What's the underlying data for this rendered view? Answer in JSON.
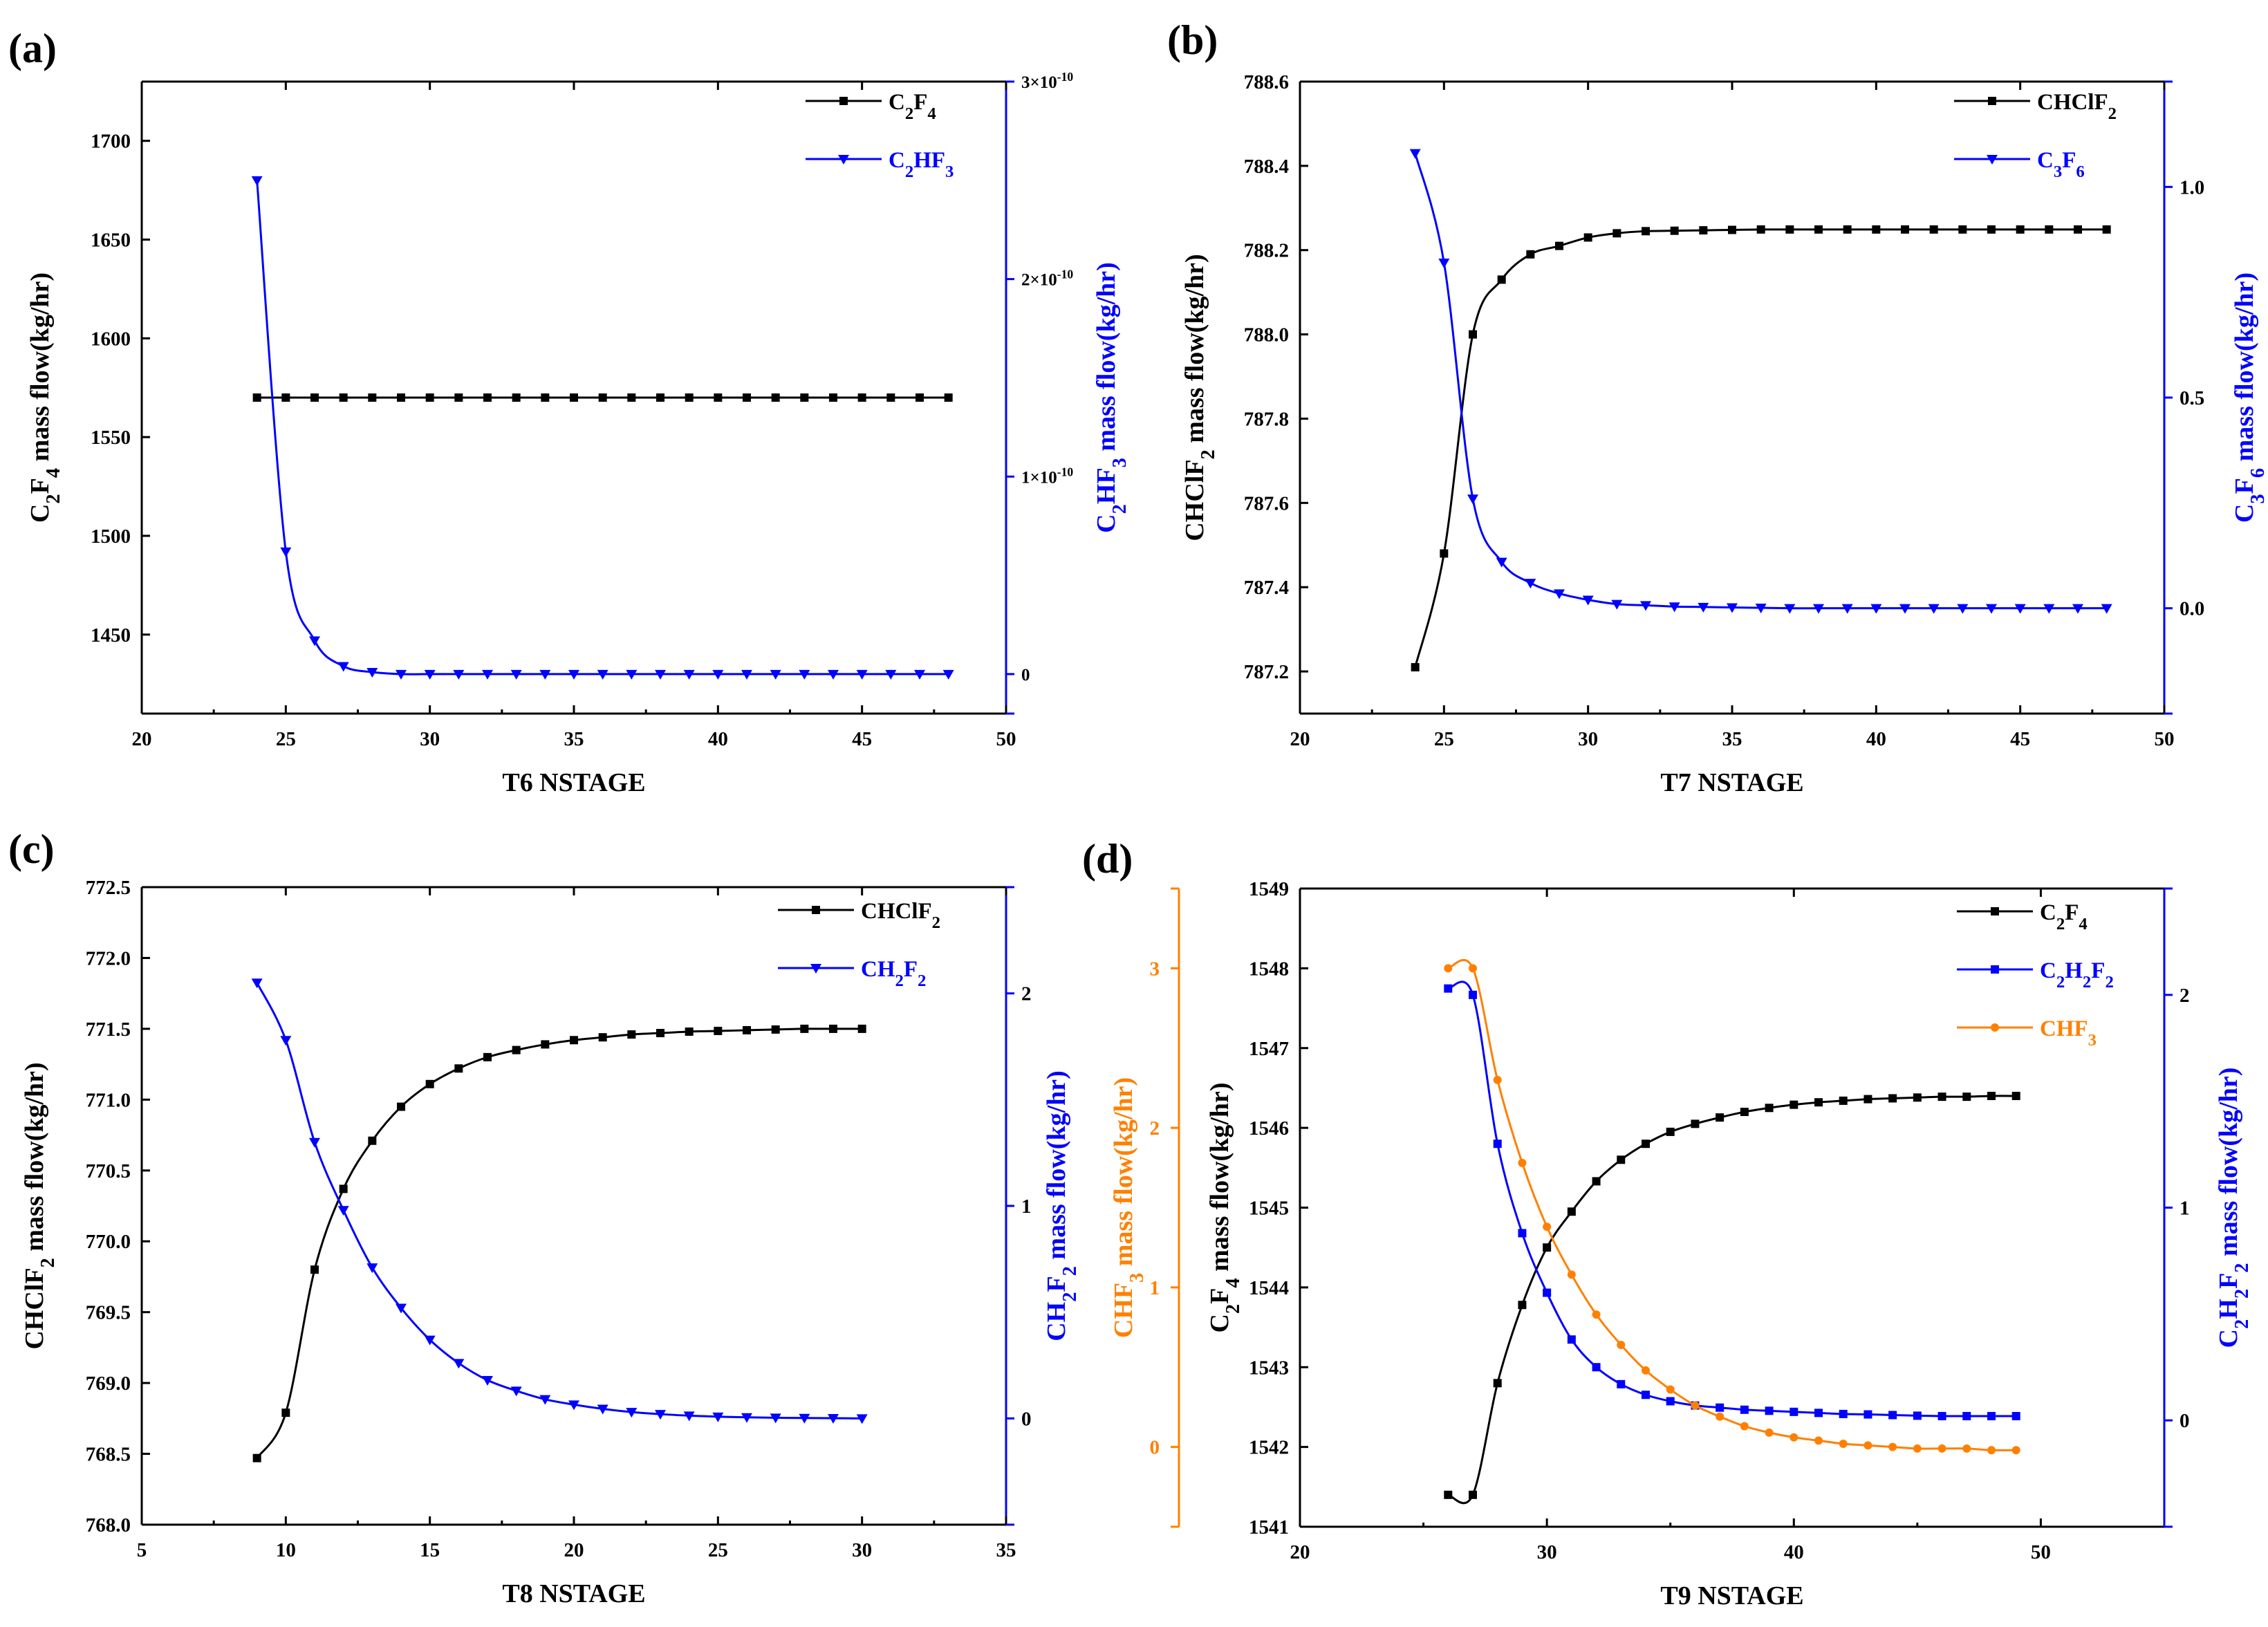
{
  "colors": {
    "black": "#000000",
    "blue": "#0000FF",
    "orange": "#FF8000"
  },
  "chart_data": [
    {
      "panel": "(a)",
      "type": "line",
      "xlabel": "T6 NSTAGE",
      "xlim": [
        20,
        50
      ],
      "xticks": [
        20,
        25,
        30,
        35,
        40,
        45,
        50
      ],
      "ylim_left": [
        1410,
        1730
      ],
      "yticks_left": [
        1450,
        1500,
        1550,
        1600,
        1650,
        1700
      ],
      "ylabel_left": "C2F4 mass flow(kg/hr)",
      "ylim_right": [
        -0.2,
        3.0
      ],
      "right_scale_label": "×10⁻¹⁰",
      "ylabel_right": "C2HF3 mass flow(kg/hr)",
      "right_tick_labels": [
        {
          "v": 0,
          "base": "0",
          "exp": ""
        },
        {
          "v": 1,
          "base": "1×10",
          "exp": "-10"
        },
        {
          "v": 2,
          "base": "2×10",
          "exp": "-10"
        },
        {
          "v": 3,
          "base": "3×10",
          "exp": "-10"
        }
      ],
      "series": [
        {
          "name": "C2F4",
          "axis": "left",
          "color": "#000000",
          "marker": "square",
          "x": [
            24,
            25,
            26,
            27,
            28,
            29,
            30,
            31,
            32,
            33,
            34,
            35,
            36,
            37,
            38,
            39,
            40,
            41,
            42,
            43,
            44,
            45,
            46,
            47,
            48
          ],
          "y": [
            1570,
            1570,
            1570,
            1570,
            1570,
            1570,
            1570,
            1570,
            1570,
            1570,
            1570,
            1570,
            1570,
            1570,
            1570,
            1570,
            1570,
            1570,
            1570,
            1570,
            1570,
            1570,
            1570,
            1570,
            1570
          ]
        },
        {
          "name": "C2HF3",
          "axis": "right",
          "color": "#0000FF",
          "marker": "triangle-down",
          "x": [
            24,
            25,
            26,
            27,
            28,
            29,
            30,
            31,
            32,
            33,
            34,
            35,
            36,
            37,
            38,
            39,
            40,
            41,
            42,
            43,
            44,
            45,
            46,
            47,
            48
          ],
          "y": [
            2.5,
            0.62,
            0.17,
            0.04,
            0.01,
            0,
            0,
            0,
            0,
            0,
            0,
            0,
            0,
            0,
            0,
            0,
            0,
            0,
            0,
            0,
            0,
            0,
            0,
            0,
            0
          ]
        }
      ]
    },
    {
      "panel": "(b)",
      "type": "line",
      "xlabel": "T7 NSTAGE",
      "xlim": [
        20,
        50
      ],
      "xticks": [
        20,
        25,
        30,
        35,
        40,
        45,
        50
      ],
      "ylim_left": [
        787.1,
        788.6
      ],
      "yticks_left": [
        787.2,
        787.4,
        787.6,
        787.8,
        788.0,
        788.2,
        788.4,
        788.6
      ],
      "ylabel_left": "CHClF2 mass flow(kg/hr)",
      "ylim_right": [
        -0.25,
        1.25
      ],
      "yticks_right": [
        0.0,
        0.5,
        1.0
      ],
      "ylabel_right": "C3F6 mass flow(kg/hr)",
      "series": [
        {
          "name": "CHClF2",
          "axis": "left",
          "color": "#000000",
          "marker": "square",
          "x": [
            24,
            25,
            26,
            27,
            28,
            29,
            30,
            31,
            32,
            33,
            34,
            35,
            36,
            37,
            38,
            39,
            40,
            41,
            42,
            43,
            44,
            45,
            46,
            47,
            48
          ],
          "y": [
            787.21,
            787.48,
            788.0,
            788.13,
            788.19,
            788.21,
            788.23,
            788.24,
            788.245,
            788.246,
            788.247,
            788.248,
            788.249,
            788.249,
            788.249,
            788.249,
            788.249,
            788.249,
            788.249,
            788.249,
            788.249,
            788.249,
            788.249,
            788.249,
            788.249
          ]
        },
        {
          "name": "C3F6",
          "axis": "right",
          "color": "#0000FF",
          "marker": "triangle-down",
          "x": [
            24,
            25,
            26,
            27,
            28,
            29,
            30,
            31,
            32,
            33,
            34,
            35,
            36,
            37,
            38,
            39,
            40,
            41,
            42,
            43,
            44,
            45,
            46,
            47,
            48
          ],
          "y": [
            1.08,
            0.82,
            0.26,
            0.11,
            0.06,
            0.035,
            0.02,
            0.01,
            0.007,
            0.004,
            0.003,
            0.002,
            0.001,
            0,
            0,
            0,
            0,
            0,
            0,
            0,
            0,
            0,
            0,
            0,
            0
          ]
        }
      ]
    },
    {
      "panel": "(c)",
      "type": "line",
      "xlabel": "T8 NSTAGE",
      "xlim": [
        5,
        35
      ],
      "xticks": [
        5,
        10,
        15,
        20,
        25,
        30,
        35
      ],
      "ylim_left": [
        768.0,
        772.5
      ],
      "yticks_left": [
        768.0,
        768.5,
        769.0,
        769.5,
        770.0,
        770.5,
        771.0,
        771.5,
        772.0,
        772.5
      ],
      "ylabel_left": "CHClF2 mass flow(kg/hr)",
      "ylim_right": [
        -0.5,
        2.5
      ],
      "yticks_right": [
        0,
        1,
        2
      ],
      "ylabel_right": "CH2F2 mass flow(kg/hr)",
      "series": [
        {
          "name": "CHClF2",
          "axis": "left",
          "color": "#000000",
          "marker": "square",
          "x": [
            9,
            10,
            11,
            12,
            13,
            14,
            15,
            16,
            17,
            18,
            19,
            20,
            21,
            22,
            23,
            24,
            25,
            26,
            27,
            28,
            29,
            30
          ],
          "y": [
            768.47,
            768.79,
            769.8,
            770.37,
            770.71,
            770.95,
            771.11,
            771.22,
            771.3,
            771.35,
            771.39,
            771.42,
            771.44,
            771.46,
            771.47,
            771.48,
            771.485,
            771.49,
            771.495,
            771.5,
            771.5,
            771.5
          ]
        },
        {
          "name": "CH2F2",
          "axis": "right",
          "color": "#0000FF",
          "marker": "triangle-down",
          "x": [
            9,
            10,
            11,
            12,
            13,
            14,
            15,
            16,
            17,
            18,
            19,
            20,
            21,
            22,
            23,
            24,
            25,
            26,
            27,
            28,
            29,
            30
          ],
          "y": [
            2.05,
            1.78,
            1.3,
            0.98,
            0.71,
            0.52,
            0.37,
            0.26,
            0.18,
            0.13,
            0.09,
            0.065,
            0.045,
            0.03,
            0.02,
            0.013,
            0.008,
            0.005,
            0.003,
            0.002,
            0.001,
            0
          ]
        }
      ]
    },
    {
      "panel": "(d)",
      "type": "line",
      "xlabel": "T9 NSTAGE",
      "xlim": [
        20,
        55
      ],
      "xticks": [
        20,
        30,
        40,
        50
      ],
      "ylim_left": [
        1541,
        1549
      ],
      "yticks_left": [
        1541,
        1542,
        1543,
        1544,
        1545,
        1546,
        1547,
        1548,
        1549
      ],
      "ylabel_left": "C2F4 mass flow(kg/hr)",
      "ylim_right": [
        -0.5,
        2.5
      ],
      "yticks_right": [
        0,
        1,
        2
      ],
      "ylabel_right": "C2H2F2 mass flow(kg/hr)",
      "ylim_extra": [
        -0.5,
        3.5
      ],
      "yticks_extra": [
        0,
        1,
        2,
        3
      ],
      "ylabel_extra": "CHF3 mass flow(kg/hr)",
      "series": [
        {
          "name": "C2F4",
          "axis": "left",
          "color": "#000000",
          "marker": "square",
          "x": [
            26,
            27,
            28,
            29,
            30,
            31,
            32,
            33,
            34,
            35,
            36,
            37,
            38,
            39,
            40,
            41,
            42,
            43,
            44,
            45,
            46,
            47,
            48,
            49
          ],
          "y": [
            1541.4,
            1541.4,
            1542.8,
            1543.78,
            1544.5,
            1544.95,
            1545.33,
            1545.6,
            1545.8,
            1545.95,
            1546.05,
            1546.13,
            1546.2,
            1546.25,
            1546.29,
            1546.32,
            1546.34,
            1546.36,
            1546.37,
            1546.38,
            1546.39,
            1546.39,
            1546.4,
            1546.4
          ]
        },
        {
          "name": "C2H2F2",
          "axis": "right",
          "color": "#0000FF",
          "marker": "square",
          "x": [
            26,
            27,
            28,
            29,
            30,
            31,
            32,
            33,
            34,
            35,
            36,
            37,
            38,
            39,
            40,
            41,
            42,
            43,
            44,
            45,
            46,
            47,
            48,
            49
          ],
          "y": [
            2.03,
            2.0,
            1.3,
            0.88,
            0.6,
            0.38,
            0.25,
            0.17,
            0.12,
            0.09,
            0.07,
            0.06,
            0.05,
            0.045,
            0.04,
            0.035,
            0.03,
            0.028,
            0.025,
            0.022,
            0.02,
            0.02,
            0.02,
            0.02
          ]
        },
        {
          "name": "CHF3",
          "axis": "extra",
          "color": "#FF8000",
          "marker": "circle",
          "x": [
            26,
            27,
            28,
            29,
            30,
            31,
            32,
            33,
            34,
            35,
            36,
            37,
            38,
            39,
            40,
            41,
            42,
            43,
            44,
            45,
            46,
            47,
            48,
            49
          ],
          "y": [
            3.0,
            3.0,
            2.3,
            1.78,
            1.38,
            1.08,
            0.83,
            0.64,
            0.48,
            0.36,
            0.26,
            0.19,
            0.13,
            0.09,
            0.06,
            0.04,
            0.02,
            0.01,
            0.0,
            -0.01,
            -0.01,
            -0.01,
            -0.02,
            -0.02
          ]
        }
      ]
    }
  ]
}
